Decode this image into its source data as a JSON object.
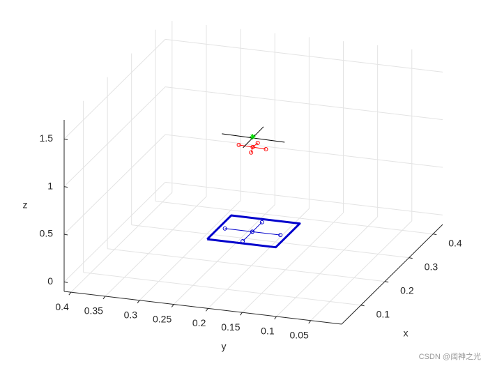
{
  "chart_data": {
    "type": "line3d",
    "xlabel": "x",
    "ylabel": "y",
    "zlabel": "z",
    "xlim": [
      0.02,
      0.44
    ],
    "ylim": [
      0.005,
      0.41
    ],
    "zlim": [
      -0.1,
      1.7
    ],
    "xticks": [
      0.1,
      0.2,
      0.3,
      0.4
    ],
    "yticks": [
      0.05,
      0.1,
      0.15,
      0.2,
      0.25,
      0.3,
      0.35,
      0.4
    ],
    "zticks": [
      0,
      0.5,
      1,
      1.5
    ],
    "grid": true,
    "series": [
      {
        "color": "#0000cc",
        "line_width": 3,
        "x": [
          0.065,
          0.165,
          0.165,
          0.065,
          0.065
        ],
        "y": [
          0.217,
          0.217,
          0.117,
          0.117,
          0.217
        ],
        "z": [
          0.5,
          0.5,
          0.5,
          0.5,
          0.5
        ]
      },
      {
        "color": "#0000cc",
        "line_width": 1,
        "marker": "o",
        "x": [
          0.113,
          0.113,
          0.113
        ],
        "y": [
          0.208,
          0.168,
          0.127
        ],
        "z": [
          0.5,
          0.5,
          0.5
        ]
      },
      {
        "color": "#0000cc",
        "line_width": 1,
        "marker": "o",
        "x": [
          0.073,
          0.113,
          0.153
        ],
        "y": [
          0.168,
          0.168,
          0.168
        ],
        "z": [
          0.5,
          0.5,
          0.5
        ]
      },
      {
        "color": "#ff0000",
        "line_width": 1,
        "marker": "o",
        "x": [
          0.111,
          0.109,
          0.107
        ],
        "y": [
          0.187,
          0.166,
          0.146
        ],
        "z": [
          1.4,
          1.4,
          1.4
        ]
      },
      {
        "color": "#ff0000",
        "line_width": 1,
        "marker": "o",
        "x": [
          0.088,
          0.109,
          0.127
        ],
        "y": [
          0.161,
          0.166,
          0.165
        ],
        "z": [
          1.4,
          1.4,
          1.4
        ]
      },
      {
        "color": "#000000",
        "line_width": 1,
        "x": [
          0.106,
          0.102
        ],
        "y": [
          0.21,
          0.117
        ],
        "z": [
          1.51,
          1.51
        ]
      },
      {
        "color": "#000000",
        "line_width": 1,
        "x": [
          0.063,
          0.151
        ],
        "y": [
          0.164,
          0.165
        ],
        "z": [
          1.51,
          1.51
        ]
      },
      {
        "color": "#00dd00",
        "line_width": 1,
        "marker": "*",
        "x": [
          0.109
        ],
        "y": [
          0.166
        ],
        "z": [
          1.51
        ]
      }
    ]
  },
  "watermark": "CSDN @阔神之光"
}
